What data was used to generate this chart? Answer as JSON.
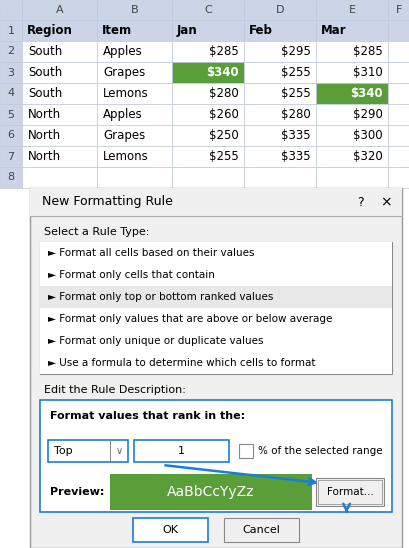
{
  "spreadsheet": {
    "col_headers": [
      "A",
      "B",
      "C",
      "D",
      "E",
      "F"
    ],
    "header_row": [
      "Region",
      "Item",
      "Jan",
      "Feb",
      "Mar",
      ""
    ],
    "data_rows": [
      [
        "South",
        "Apples",
        "$285",
        "$295",
        "$285",
        ""
      ],
      [
        "South",
        "Grapes",
        "$340",
        "$255",
        "$310",
        ""
      ],
      [
        "South",
        "Lemons",
        "$280",
        "$255",
        "$340",
        ""
      ],
      [
        "North",
        "Apples",
        "$260",
        "$280",
        "$290",
        ""
      ],
      [
        "North",
        "Grapes",
        "$250",
        "$335",
        "$300",
        ""
      ],
      [
        "North",
        "Lemons",
        "$255",
        "$335",
        "$320",
        ""
      ],
      [
        "",
        "",
        "",
        "",
        "",
        ""
      ]
    ],
    "highlighted_cells": [
      {
        "row": 2,
        "col": 2,
        "color": "#5a9e3a"
      },
      {
        "row": 3,
        "col": 4,
        "color": "#5a9e3a"
      }
    ],
    "header_bg": "#ccd4e8",
    "cell_bg": "#ffffff",
    "grid_color": "#c0c8d8",
    "text_color": "#000000"
  },
  "dialog": {
    "title": "New Formatting Rule",
    "rule_types": [
      "► Format all cells based on their values",
      "► Format only cells that contain",
      "► Format only top or bottom ranked values",
      "► Format only values that are above or below average",
      "► Format only unique or duplicate values",
      "► Use a formula to determine which cells to format"
    ],
    "selected_rule_index": 2,
    "selected_rule_bg": "#e8e8e8",
    "bg_color": "#f0f0f0",
    "border_color": "#999999",
    "section2_label": "Edit the Rule Description:",
    "section3_label": "Format values that rank in the:",
    "dropdown_value": "Top",
    "input_value": "1",
    "checkbox_label": "% of the selected range",
    "preview_label": "Preview:",
    "preview_text": "AaBbCcYyZz",
    "preview_bg": "#5a9e3a",
    "preview_text_color": "#ffffff",
    "format_btn": "Format...",
    "ok_btn": "OK",
    "cancel_btn": "Cancel",
    "arrow_color": "#1a7fd4",
    "blue_border": "#1a7fd4"
  }
}
